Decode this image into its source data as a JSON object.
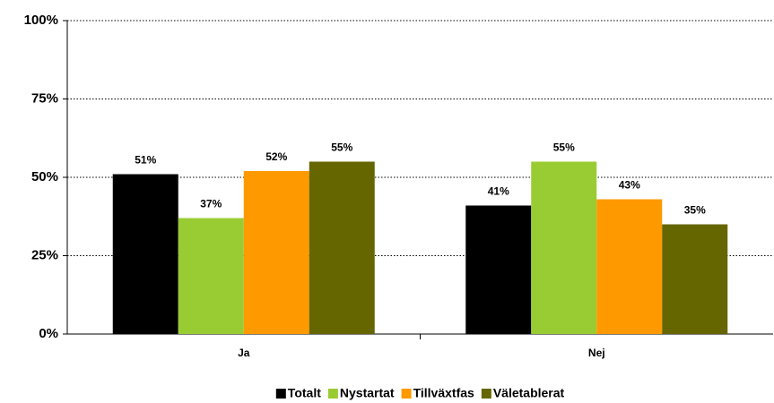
{
  "chart_data": {
    "type": "bar",
    "categories": [
      "Ja",
      "Nej"
    ],
    "series": [
      {
        "name": "Totalt",
        "color": "#000000",
        "values": [
          51,
          41
        ],
        "value_labels": [
          "51%",
          "41%"
        ]
      },
      {
        "name": "Nystartat",
        "color": "#99cc33",
        "values": [
          37,
          55
        ],
        "value_labels": [
          "37%",
          "55%"
        ]
      },
      {
        "name": "Tillväxtfas",
        "color": "#ff9900",
        "values": [
          52,
          43
        ],
        "value_labels": [
          "52%",
          "43%"
        ]
      },
      {
        "name": "Väletablerat",
        "color": "#666600",
        "values": [
          55,
          35
        ],
        "value_labels": [
          "55%",
          "35%"
        ]
      }
    ],
    "ylim": [
      0,
      100
    ],
    "yticks": [
      {
        "value": 0,
        "label": "0%"
      },
      {
        "value": 25,
        "label": "25%"
      },
      {
        "value": 50,
        "label": "50%"
      },
      {
        "value": 75,
        "label": "75%"
      },
      {
        "value": 100,
        "label": "100%"
      }
    ],
    "grid": true,
    "legend": "bottom"
  }
}
